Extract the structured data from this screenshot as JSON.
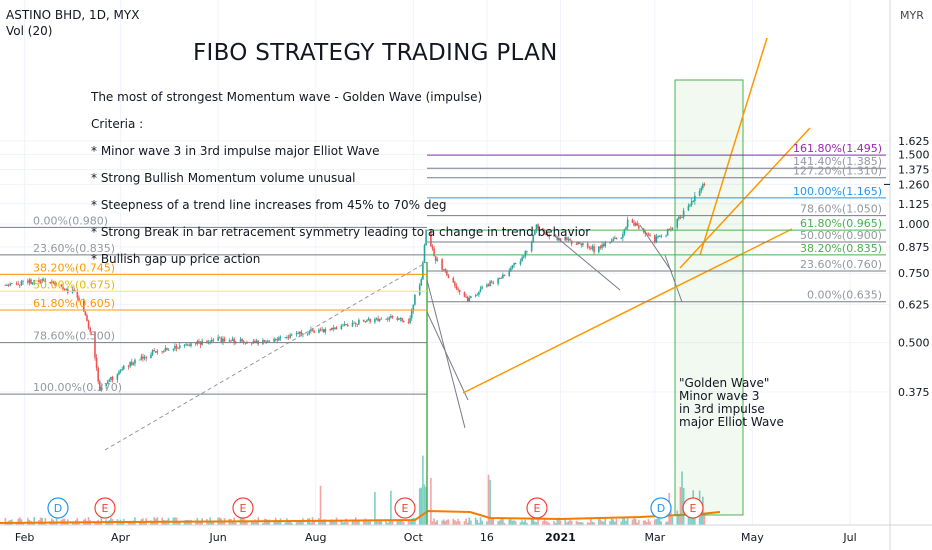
{
  "header": {
    "symbol": "ASTINO BHD, 1D, MYX",
    "volume_label": "Vol (20)",
    "currency": "MYR"
  },
  "title": "FIBO STRATEGY TRADING PLAN",
  "notes": [
    "The most of strongest Momentum wave - Golden Wave (impulse)",
    "Criteria :",
    "* Minor wave 3 in 3rd impulse major Elliot Wave",
    "* Strong Bullish Momentum volume unusual",
    "* Steepness of a trend line increases from 45% to 70% deg",
    "* Strong Break in bar retracement symmetry leading to a change in trend behavior",
    "* Bullish gap up price action"
  ],
  "golden_wave_label": "\"Golden Wave\"\nMinor wave 3\nin 3rd impulse\nmajor Elliot Wave",
  "chart_data": {
    "type": "candlestick",
    "y_scale": "log",
    "ylim": [
      0.31,
      1.7
    ],
    "price_axis_ticks": [
      "1.625",
      "1.500",
      "1.375",
      "1.260",
      "1.125",
      "1.000",
      "0.875",
      "0.750",
      "0.625",
      "0.500",
      "0.375"
    ],
    "price_tick_values": [
      1.625,
      1.5,
      1.375,
      1.26,
      1.125,
      1.0,
      0.875,
      0.75,
      0.625,
      0.5,
      0.375
    ],
    "current_price": 1.26,
    "time_axis_labels": [
      "Feb",
      "Apr",
      "Jun",
      "Aug",
      "Oct",
      "16",
      "2021",
      "Mar",
      "May",
      "Jul"
    ],
    "price_path": [
      [
        "2020-01-20",
        0.7
      ],
      [
        "2020-02-05",
        0.71
      ],
      [
        "2020-02-15",
        0.72
      ],
      [
        "2020-02-25",
        0.69
      ],
      [
        "2020-03-05",
        0.66
      ],
      [
        "2020-03-12",
        0.55
      ],
      [
        "2020-03-19",
        0.38
      ],
      [
        "2020-03-25",
        0.4
      ],
      [
        "2020-04-05",
        0.44
      ],
      [
        "2020-04-20",
        0.47
      ],
      [
        "2020-05-10",
        0.49
      ],
      [
        "2020-06-01",
        0.51
      ],
      [
        "2020-06-25",
        0.5
      ],
      [
        "2020-07-15",
        0.52
      ],
      [
        "2020-08-10",
        0.54
      ],
      [
        "2020-09-01",
        0.57
      ],
      [
        "2020-09-20",
        0.58
      ],
      [
        "2020-09-28",
        0.56
      ],
      [
        "2020-10-02",
        0.65
      ],
      [
        "2020-10-06",
        0.72
      ],
      [
        "2020-10-09",
        0.96
      ],
      [
        "2020-10-14",
        0.83
      ],
      [
        "2020-10-22",
        0.74
      ],
      [
        "2020-10-30",
        0.68
      ],
      [
        "2020-11-05",
        0.64
      ],
      [
        "2020-11-15",
        0.7
      ],
      [
        "2020-11-25",
        0.73
      ],
      [
        "2020-12-05",
        0.8
      ],
      [
        "2020-12-12",
        0.86
      ],
      [
        "2020-12-17",
        0.99
      ],
      [
        "2020-12-25",
        0.93
      ],
      [
        "2021-01-05",
        0.91
      ],
      [
        "2021-01-15",
        0.88
      ],
      [
        "2021-01-22",
        0.86
      ],
      [
        "2021-02-01",
        0.9
      ],
      [
        "2021-02-08",
        0.93
      ],
      [
        "2021-02-13",
        1.03
      ],
      [
        "2021-02-20",
        0.97
      ],
      [
        "2021-02-28",
        0.91
      ],
      [
        "2021-03-08",
        0.95
      ],
      [
        "2021-03-15",
        1.02
      ],
      [
        "2021-03-20",
        1.08
      ],
      [
        "2021-03-24",
        1.15
      ],
      [
        "2021-03-28",
        1.2
      ],
      [
        "2021-04-01",
        1.27
      ]
    ],
    "fib_left": {
      "levels": [
        "100.00%(0.370)",
        "78.60%(0.500)",
        "61.80%(0.605)",
        "50.00%(0.675)",
        "38.20%(0.745)",
        "23.60%(0.835)",
        "0.00%(0.980)"
      ],
      "values": [
        0.37,
        0.5,
        0.605,
        0.675,
        0.745,
        0.835,
        0.98
      ]
    },
    "fib_right": {
      "levels": [
        "161.80%(1.495)",
        "141.40%(1.385)",
        "127.20%(1.310)",
        "100.00%(1.165)",
        "78.60%(1.050)",
        "61.80%(0.965)",
        "50.00%(0.900)",
        "38.20%(0.835)",
        "23.60%(0.760)",
        "0.00%(0.635)"
      ],
      "values": [
        1.495,
        1.385,
        1.31,
        1.165,
        1.05,
        0.965,
        0.9,
        0.835,
        0.76,
        0.635
      ],
      "colors": [
        "#9c27b0",
        "#787b86",
        "#787b86",
        "#2196f3",
        "#787b86",
        "#4caf50",
        "#787b86",
        "#4caf50",
        "#787b86",
        "#787b86"
      ]
    },
    "event_markers": [
      "D",
      "E",
      "E",
      "E",
      "E",
      "D",
      "E"
    ],
    "event_colors": [
      "#2196f3",
      "#f44336",
      "#f44336",
      "#f44336",
      "#f44336",
      "#2196f3",
      "#f44336"
    ]
  }
}
